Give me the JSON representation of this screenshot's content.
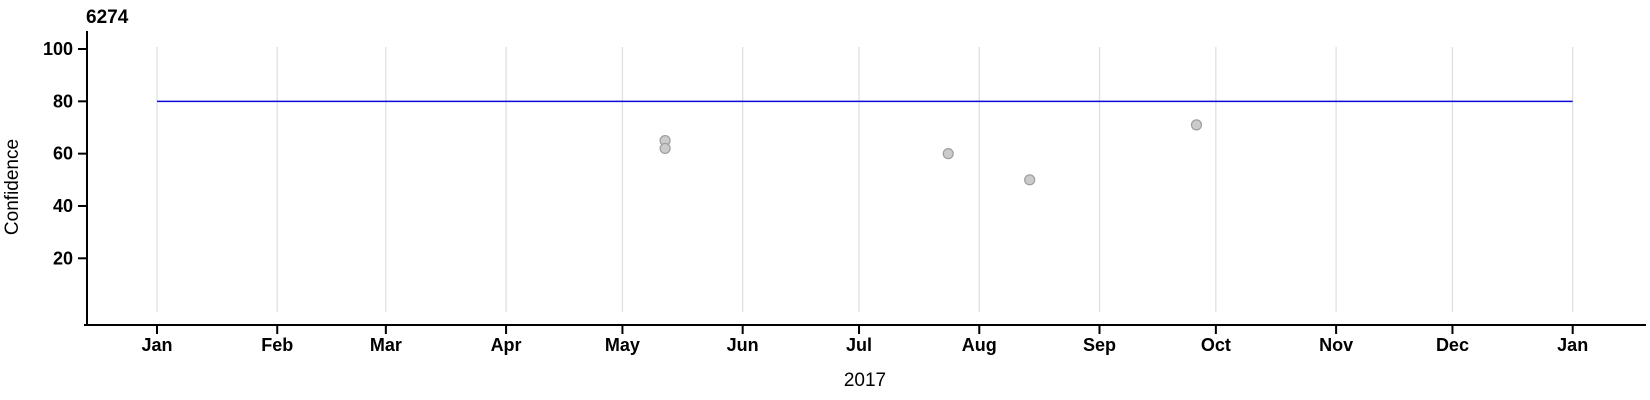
{
  "chart_data": {
    "type": "scatter",
    "title": "6274",
    "xlabel": "2017",
    "ylabel": "Confidence",
    "x_tick_labels": [
      "Jan",
      "Feb",
      "Mar",
      "Apr",
      "May",
      "Jun",
      "Jul",
      "Aug",
      "Sep",
      "Oct",
      "Nov",
      "Dec",
      "Jan"
    ],
    "y_ticks": [
      20,
      40,
      60,
      80,
      100
    ],
    "ylim": [
      -5,
      106
    ],
    "x_range": "2017-01-01 to 2018-01-01",
    "grid": "vertical gridlines at each month, no horizontal gridlines",
    "legend_position": "none",
    "reference_line": {
      "y": 80,
      "color": "#0b0bd8"
    },
    "points": [
      {
        "date": "2017-05-12",
        "value": 65
      },
      {
        "date": "2017-05-12",
        "value": 62
      },
      {
        "date": "2017-07-24",
        "value": 60
      },
      {
        "date": "2017-08-14",
        "value": 50
      },
      {
        "date": "2017-09-26",
        "value": 71
      }
    ],
    "point_style": {
      "fill": "#cbcbcb",
      "stroke": "#9e9e9e",
      "radius_px": 5
    },
    "colors": {
      "axis": "#000000",
      "gridline": "#e0e0e0",
      "reference_line": "#0b0bd8",
      "background": "#ffffff"
    }
  }
}
